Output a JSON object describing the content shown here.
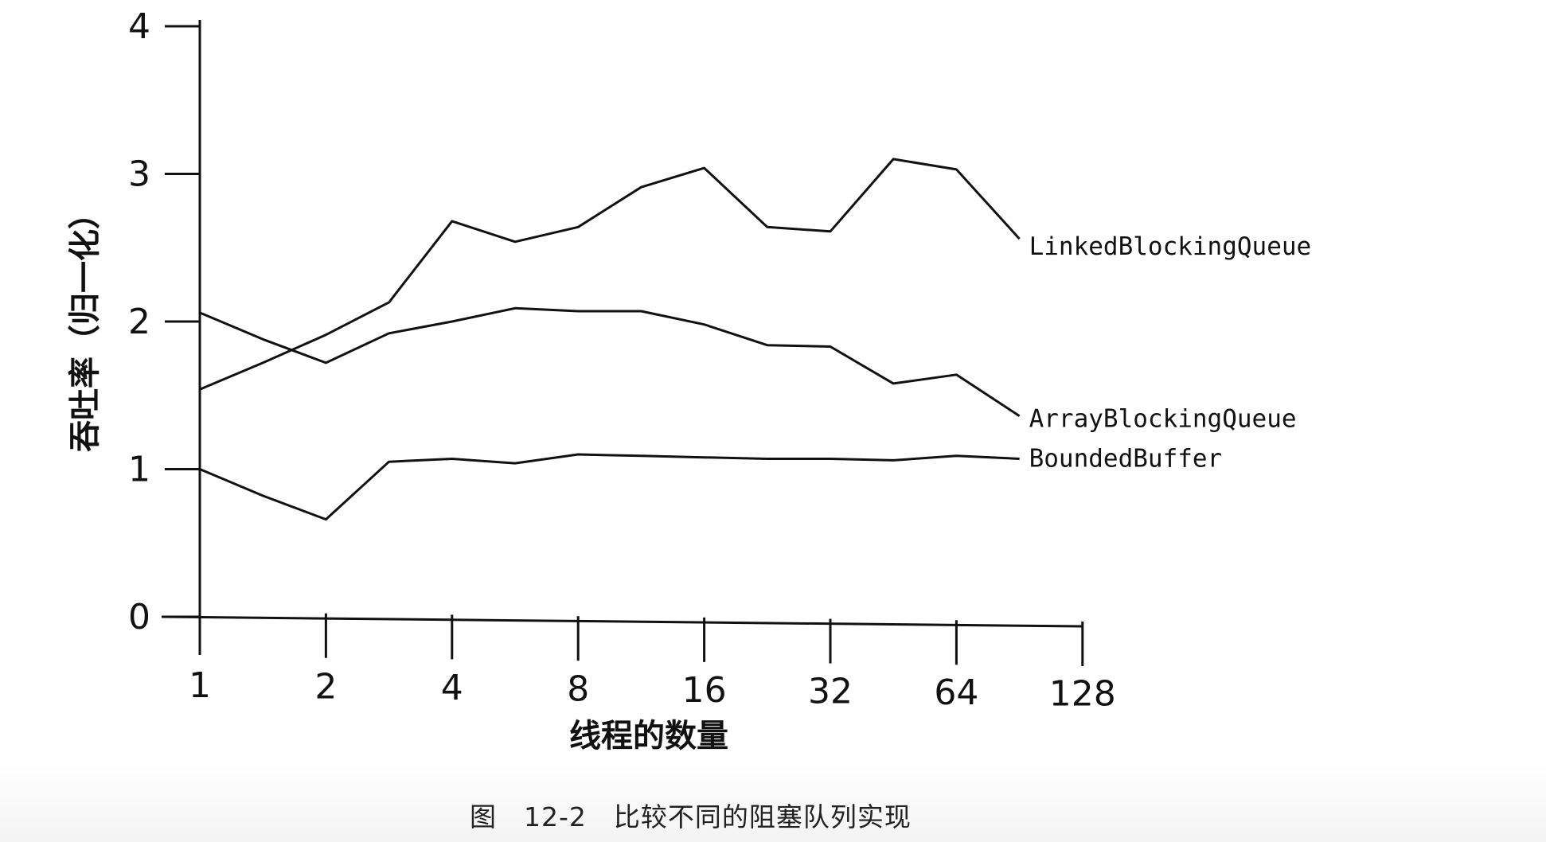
{
  "caption": "图　12-2　比较不同的阻塞队列实现",
  "chart_data": {
    "type": "line",
    "title": "",
    "xlabel": "线程的数量",
    "ylabel": "吞吐率（归一化）",
    "x_scale": "log2",
    "x": [
      1,
      1.414,
      2,
      2.828,
      4,
      5.657,
      8,
      11.314,
      16,
      22.627,
      32,
      45.255,
      64,
      90.51
    ],
    "x_ticks": [
      1,
      2,
      4,
      8,
      16,
      32,
      64,
      128
    ],
    "x_tick_labels": [
      "1",
      "2",
      "4",
      "8",
      "16",
      "32",
      "64",
      "128"
    ],
    "ylim": [
      0,
      4
    ],
    "y_ticks": [
      0,
      1,
      2,
      3,
      4
    ],
    "y_tick_labels": [
      "0",
      "1",
      "2",
      "3",
      "4"
    ],
    "grid": false,
    "legend": "inline labels at line ends",
    "line_color": "#111111",
    "series": [
      {
        "name": "LinkedBlockingQueue",
        "values": [
          1.54,
          1.72,
          1.91,
          2.13,
          2.68,
          2.54,
          2.64,
          2.91,
          3.04,
          2.64,
          2.61,
          3.1,
          3.03,
          2.56
        ]
      },
      {
        "name": "ArrayBlockingQueue",
        "values": [
          2.06,
          1.88,
          1.72,
          1.92,
          2.0,
          2.09,
          2.07,
          2.07,
          1.98,
          1.84,
          1.83,
          1.58,
          1.64,
          1.36
        ]
      },
      {
        "name": "BoundedBuffer",
        "values": [
          1.0,
          0.82,
          0.66,
          1.05,
          1.07,
          1.04,
          1.1,
          1.09,
          1.08,
          1.07,
          1.07,
          1.06,
          1.09,
          1.07
        ]
      }
    ]
  }
}
